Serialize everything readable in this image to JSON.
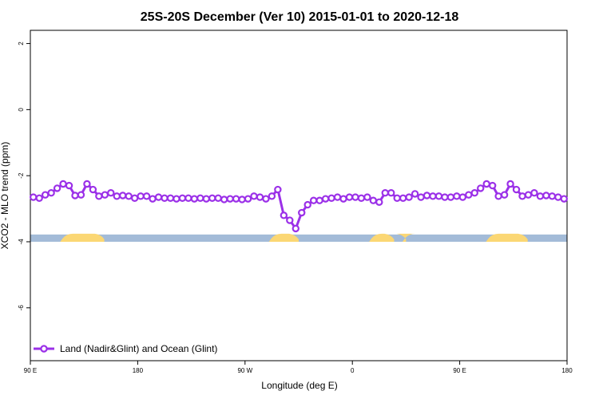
{
  "chart_data": {
    "type": "line",
    "title": "25S-20S December (Ver 10)   2015-01-01 to 2020-12-18",
    "xlabel": "Longitude (deg E)",
    "ylabel": "XCO2 - MLO trend (ppm)",
    "xlim": [
      90,
      540
    ],
    "ylim": [
      -7.6,
      2.4
    ],
    "x_ticks": [
      {
        "value": 90,
        "label": "90 E"
      },
      {
        "value": 180,
        "label": "180"
      },
      {
        "value": 270,
        "label": "90 W"
      },
      {
        "value": 360,
        "label": "0"
      },
      {
        "value": 450,
        "label": "90 E"
      },
      {
        "value": 540,
        "label": "180"
      }
    ],
    "y_ticks": [
      {
        "value": 2,
        "label": "2"
      },
      {
        "value": 0,
        "label": "0"
      },
      {
        "value": -2,
        "label": "-2"
      },
      {
        "value": -4,
        "label": "-4"
      },
      {
        "value": -6,
        "label": "-6"
      }
    ],
    "series": [
      {
        "name": "Land (Nadir&Glint) and Ocean (Glint)",
        "color": "#9b30e8",
        "x": [
          92.5,
          97.5,
          102.5,
          107.5,
          112.5,
          117.5,
          122.5,
          127.5,
          132.5,
          137.5,
          142.5,
          147.5,
          152.5,
          157.5,
          162.5,
          167.5,
          172.5,
          177.5,
          182.5,
          187.5,
          192.5,
          197.5,
          202.5,
          207.5,
          212.5,
          217.5,
          222.5,
          227.5,
          232.5,
          237.5,
          242.5,
          247.5,
          252.5,
          257.5,
          262.5,
          267.5,
          272.5,
          277.5,
          282.5,
          287.5,
          292.5,
          297.5,
          302.5,
          307.5,
          312.5,
          317.5,
          322.5,
          327.5,
          332.5,
          337.5,
          342.5,
          347.5,
          352.5,
          357.5,
          362.5,
          367.5,
          372.5,
          377.5,
          382.5,
          387.5,
          392.5,
          397.5,
          402.5,
          407.5,
          412.5,
          417.5,
          422.5,
          427.5,
          432.5,
          437.5,
          442.5,
          447.5,
          452.5,
          457.5,
          462.5,
          467.5,
          472.5,
          477.5,
          482.5,
          487.5,
          492.5,
          497.5,
          502.5,
          507.5,
          512.5,
          517.5,
          522.5,
          527.5,
          532.5,
          537.5
        ],
        "y": [
          -2.65,
          -2.68,
          -2.58,
          -2.52,
          -2.38,
          -2.25,
          -2.3,
          -2.6,
          -2.58,
          -2.25,
          -2.42,
          -2.62,
          -2.58,
          -2.52,
          -2.62,
          -2.6,
          -2.62,
          -2.68,
          -2.62,
          -2.62,
          -2.7,
          -2.65,
          -2.68,
          -2.68,
          -2.7,
          -2.68,
          -2.68,
          -2.7,
          -2.68,
          -2.7,
          -2.68,
          -2.68,
          -2.72,
          -2.7,
          -2.7,
          -2.72,
          -2.7,
          -2.62,
          -2.65,
          -2.7,
          -2.62,
          -2.42,
          -3.2,
          -3.35,
          -3.6,
          -3.12,
          -2.88,
          -2.75,
          -2.75,
          -2.7,
          -2.68,
          -2.65,
          -2.7,
          -2.65,
          -2.65,
          -2.68,
          -2.65,
          -2.75,
          -2.8,
          -2.52,
          -2.52,
          -2.68,
          -2.68,
          -2.65,
          -2.55,
          -2.65,
          -2.6,
          -2.62,
          -2.62,
          -2.65,
          -2.65,
          -2.62,
          -2.65,
          -2.58,
          -2.52,
          -2.38,
          -2.25,
          -2.3,
          -2.62,
          -2.58,
          -2.25,
          -2.42,
          -2.62,
          -2.58,
          -2.52,
          -2.62,
          -2.6,
          -2.62,
          -2.65,
          -2.7
        ]
      }
    ],
    "land_segments": [
      [
        115,
        152
      ],
      [
        290,
        315
      ],
      [
        374,
        395
      ],
      [
        402,
        405
      ],
      [
        472,
        507
      ]
    ],
    "legend_position": "bottom-left",
    "grid": false
  },
  "colors": {
    "ocean": "#a3bbd8",
    "land": "#fbd774",
    "line": "#9b30e8",
    "marker_fill": "#ffffff"
  }
}
